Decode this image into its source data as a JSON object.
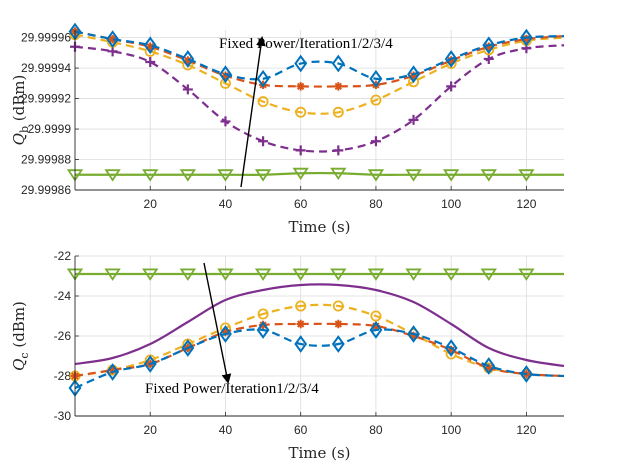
{
  "chart_data": [
    {
      "type": "line",
      "ylabel": "Q_b (dBm)",
      "ylabel_sym": "Q",
      "ylabel_sub": "b",
      "ylabel_unit": "(dBm)",
      "xlabel": "Time (s)",
      "xlim": [
        0,
        130
      ],
      "ylim": [
        29.99986,
        29.999965
      ],
      "xticks": [
        20,
        40,
        60,
        80,
        100,
        120
      ],
      "xtick_labels": [
        "20",
        "40",
        "60",
        "80",
        "100",
        "120"
      ],
      "yticks": [
        29.99986,
        29.99988,
        29.9999,
        29.99992,
        29.99994,
        29.99996
      ],
      "ytick_labels": [
        "29.99986",
        "29.99988",
        "29.9999",
        "29.99992",
        "29.99994",
        "29.99996"
      ],
      "annotation": "Fixed Power/Iteration1/2/3/4",
      "series": [
        {
          "name": "Fixed Power",
          "color": "#77ac30",
          "style": "solid",
          "marker": "triangle-down",
          "x": [
            0,
            10,
            20,
            30,
            40,
            50,
            60,
            70,
            80,
            90,
            100,
            110,
            120,
            130
          ],
          "y": [
            29.99987,
            29.99987,
            29.99987,
            29.99987,
            29.99987,
            29.99987,
            29.999871,
            29.999871,
            29.99987,
            29.99987,
            29.99987,
            29.99987,
            29.99987,
            29.99987
          ]
        },
        {
          "name": "Iteration 1",
          "color": "#7e2f8e",
          "style": "dashed",
          "marker": "plus",
          "x": [
            0,
            10,
            20,
            30,
            40,
            50,
            60,
            70,
            80,
            90,
            100,
            110,
            120,
            130
          ],
          "y": [
            29.999954,
            29.999951,
            29.999944,
            29.999926,
            29.999905,
            29.999892,
            29.999886,
            29.999886,
            29.999892,
            29.999906,
            29.999928,
            29.999946,
            29.999953,
            29.999955
          ]
        },
        {
          "name": "Iteration 2",
          "color": "#edb120",
          "style": "dashed",
          "marker": "circle",
          "x": [
            0,
            10,
            20,
            30,
            40,
            50,
            60,
            70,
            80,
            90,
            100,
            110,
            120,
            130
          ],
          "y": [
            29.999962,
            29.999957,
            29.999951,
            29.999942,
            29.99993,
            29.999918,
            29.999911,
            29.999911,
            29.999919,
            29.999931,
            29.999943,
            29.999952,
            29.999958,
            29.99996
          ]
        },
        {
          "name": "Iteration 3",
          "color": "#d95319",
          "style": "dashed",
          "marker": "asterisk",
          "x": [
            0,
            10,
            20,
            30,
            40,
            50,
            60,
            70,
            80,
            90,
            100,
            110,
            120,
            130
          ],
          "y": [
            29.999964,
            29.999959,
            29.999954,
            29.999945,
            29.999935,
            29.999929,
            29.999928,
            29.999928,
            29.999929,
            29.999935,
            29.999945,
            29.999954,
            29.999959,
            29.999961
          ]
        },
        {
          "name": "Iteration 4",
          "color": "#0072bd",
          "style": "dashed",
          "marker": "diamond",
          "x": [
            0,
            10,
            20,
            30,
            40,
            50,
            60,
            70,
            80,
            90,
            100,
            110,
            120,
            130
          ],
          "y": [
            29.999964,
            29.999959,
            29.999955,
            29.999946,
            29.999936,
            29.999933,
            29.999943,
            29.999943,
            29.999933,
            29.999936,
            29.999946,
            29.999955,
            29.99996,
            29.999961
          ]
        }
      ]
    },
    {
      "type": "line",
      "ylabel": "Q_c (dBm)",
      "ylabel_sym": "Q",
      "ylabel_sub": "c",
      "ylabel_unit": "(dBm)",
      "xlabel": "Time (s)",
      "xlim": [
        0,
        130
      ],
      "ylim": [
        -30,
        -22
      ],
      "xticks": [
        20,
        40,
        60,
        80,
        100,
        120
      ],
      "xtick_labels": [
        "20",
        "40",
        "60",
        "80",
        "100",
        "120"
      ],
      "yticks": [
        -30,
        -28,
        -26,
        -24,
        -22
      ],
      "ytick_labels": [
        "-30",
        "-28",
        "-26",
        "-24",
        "-22"
      ],
      "annotation": "Fixed Power/Iteration1/2/3/4",
      "series": [
        {
          "name": "Fixed Power",
          "color": "#77ac30",
          "style": "solid",
          "marker": "triangle-down",
          "x": [
            0,
            10,
            20,
            30,
            40,
            50,
            60,
            70,
            80,
            90,
            100,
            110,
            120,
            130
          ],
          "y": [
            -22.9,
            -22.9,
            -22.9,
            -22.9,
            -22.9,
            -22.9,
            -22.9,
            -22.9,
            -22.9,
            -22.9,
            -22.9,
            -22.9,
            -22.9,
            -22.9
          ]
        },
        {
          "name": "Iteration 1",
          "color": "#7e2f8e",
          "style": "solid",
          "marker": "none",
          "x": [
            0,
            10,
            20,
            30,
            40,
            50,
            60,
            70,
            80,
            90,
            100,
            110,
            120,
            130
          ],
          "y": [
            -27.4,
            -27.1,
            -26.4,
            -25.3,
            -24.2,
            -23.7,
            -23.45,
            -23.45,
            -23.7,
            -24.3,
            -25.4,
            -26.6,
            -27.2,
            -27.5
          ]
        },
        {
          "name": "Iteration 2",
          "color": "#edb120",
          "style": "dashed",
          "marker": "circle",
          "x": [
            0,
            10,
            20,
            30,
            40,
            50,
            60,
            70,
            80,
            90,
            100,
            110,
            120,
            130
          ],
          "y": [
            -28.0,
            -27.7,
            -27.2,
            -26.4,
            -25.6,
            -24.9,
            -24.5,
            -24.5,
            -25.0,
            -25.9,
            -26.9,
            -27.6,
            -27.9,
            -28.0
          ]
        },
        {
          "name": "Iteration 3",
          "color": "#d95319",
          "style": "dashed",
          "marker": "asterisk",
          "x": [
            0,
            10,
            20,
            30,
            40,
            50,
            60,
            70,
            80,
            90,
            100,
            110,
            120,
            130
          ],
          "y": [
            -28.0,
            -27.7,
            -27.4,
            -26.6,
            -25.8,
            -25.45,
            -25.4,
            -25.4,
            -25.5,
            -26.0,
            -26.7,
            -27.6,
            -27.9,
            -28.0
          ]
        },
        {
          "name": "Iteration 4",
          "color": "#0072bd",
          "style": "dashed",
          "marker": "diamond",
          "x": [
            0,
            10,
            20,
            30,
            40,
            50,
            60,
            70,
            80,
            90,
            100,
            110,
            120,
            130
          ],
          "y": [
            -28.6,
            -27.8,
            -27.4,
            -26.6,
            -25.9,
            -25.7,
            -26.4,
            -26.4,
            -25.7,
            -25.9,
            -26.6,
            -27.5,
            -27.9,
            -28.0
          ]
        }
      ]
    }
  ]
}
